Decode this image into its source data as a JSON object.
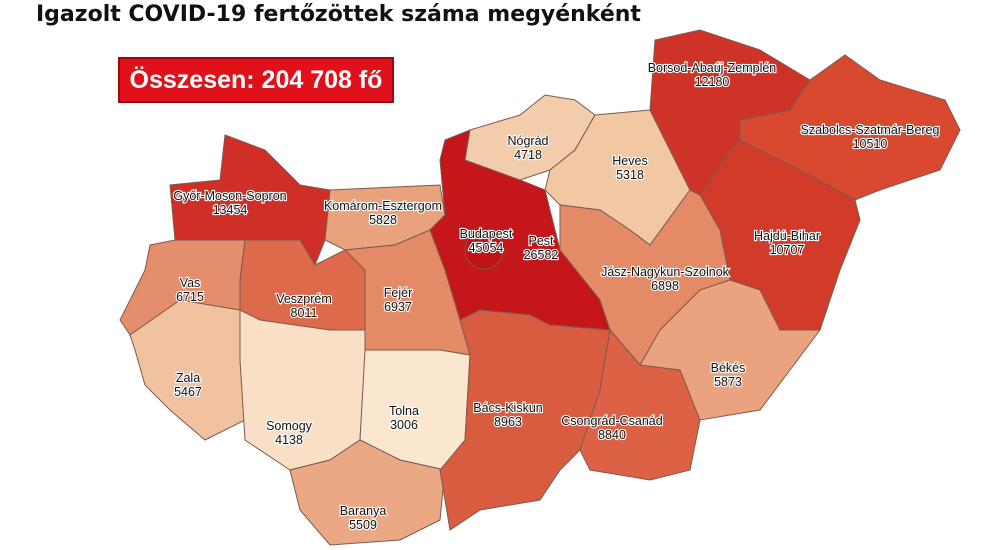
{
  "title": "Igazolt COVID-19 fertőzöttek száma megyénként",
  "total_label": "Összesen: 204 708 fő",
  "colors": {
    "total_box": "#e0111a"
  },
  "counties": [
    {
      "name": "Győr-Moson-Sopron",
      "value": "13454",
      "color": "#cf2f26"
    },
    {
      "name": "Komárom-Esztergom",
      "value": "5828",
      "color": "#eaa27d"
    },
    {
      "name": "Vas",
      "value": "6715",
      "color": "#e58e6b"
    },
    {
      "name": "Zala",
      "value": "5467",
      "color": "#f1c29f"
    },
    {
      "name": "Veszprém",
      "value": "8011",
      "color": "#dd6a4a"
    },
    {
      "name": "Somogy",
      "value": "4138",
      "color": "#f9dfc5"
    },
    {
      "name": "Fejér",
      "value": "6937",
      "color": "#e58a66"
    },
    {
      "name": "Tolna",
      "value": "3006",
      "color": "#fbe6d0"
    },
    {
      "name": "Baranya",
      "value": "5509",
      "color": "#eba884"
    },
    {
      "name": "Pest",
      "value": "26582",
      "color": "#c5161a"
    },
    {
      "name": "Budapest",
      "value": "45054",
      "color": "#c01216"
    },
    {
      "name": "Nógrád",
      "value": "4718",
      "color": "#f3cdab"
    },
    {
      "name": "Heves",
      "value": "5318",
      "color": "#f1c7a4"
    },
    {
      "name": "Borsod-Abaúj-Zemplén",
      "value": "12180",
      "color": "#cf3327"
    },
    {
      "name": "Szabolcs-Szatmár-Bereg",
      "value": "10510",
      "color": "#d8492f"
    },
    {
      "name": "Hajdú-Bihar",
      "value": "10707",
      "color": "#d23b29"
    },
    {
      "name": "Jász-Nagykun-Szolnok",
      "value": "6898",
      "color": "#e58a66"
    },
    {
      "name": "Bács-Kiskun",
      "value": "8963",
      "color": "#da5c40"
    },
    {
      "name": "Csongrád-Csanád",
      "value": "8840",
      "color": "#dc6145"
    },
    {
      "name": "Békés",
      "value": "5873",
      "color": "#eba27e"
    }
  ]
}
